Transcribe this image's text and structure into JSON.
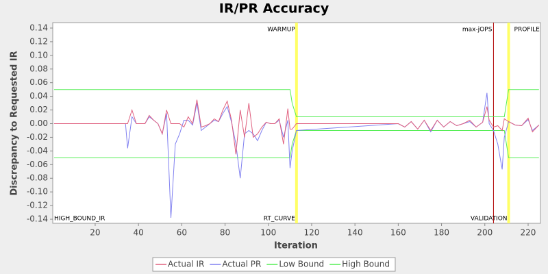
{
  "chart_data": {
    "type": "line",
    "title": "IR/PR Accuracy",
    "x_label": "Iteration",
    "y_label": "Discrepancy to Requested IR",
    "x": [
      1,
      34,
      35,
      37,
      39,
      41,
      43,
      45,
      47,
      49,
      51,
      53,
      55,
      57,
      59,
      61,
      63,
      65,
      67,
      69,
      71,
      73,
      75,
      77,
      79,
      81,
      83,
      85,
      87,
      89,
      91,
      93,
      95,
      97,
      99,
      101,
      103,
      105,
      107,
      109,
      110,
      111,
      113,
      160,
      163,
      166,
      169,
      172,
      175,
      178,
      181,
      184,
      187,
      190,
      193,
      196,
      199,
      201,
      202,
      204,
      206,
      208,
      209,
      211,
      214,
      217,
      220,
      222,
      225
    ],
    "series": [
      {
        "name": "Actual IR",
        "color": "#e0607f",
        "values": [
          0,
          0,
          0,
          0.02,
          0,
          0,
          0,
          0.012,
          0.005,
          0,
          -0.015,
          0.02,
          0,
          0,
          0,
          -0.005,
          0.01,
          0,
          0.035,
          -0.005,
          -0.003,
          0,
          0.007,
          0.003,
          0.02,
          0.033,
          0.005,
          -0.045,
          0.02,
          -0.02,
          0.03,
          -0.02,
          -0.015,
          -0.005,
          0.002,
          0,
          0,
          0.007,
          -0.03,
          0.022,
          -0.008,
          -0.008,
          0,
          0,
          -0.005,
          0.003,
          -0.008,
          0.005,
          -0.01,
          0.005,
          -0.005,
          0.003,
          -0.003,
          0,
          0.005,
          -0.005,
          0.002,
          0.025,
          0.005,
          -0.005,
          -0.003,
          -0.01,
          0.007,
          0.003,
          -0.002,
          -0.003,
          0.008,
          -0.012,
          -0.002
        ]
      },
      {
        "name": "Actual PR",
        "color": "#8080f0",
        "values": [
          0,
          0,
          -0.036,
          0.01,
          0,
          0,
          0,
          0.01,
          0.005,
          0,
          -0.015,
          0.015,
          -0.138,
          -0.03,
          -0.015,
          0.005,
          0.005,
          -0.002,
          0.03,
          -0.01,
          -0.005,
          0,
          0.005,
          0.003,
          0.015,
          0.025,
          0.002,
          -0.03,
          -0.08,
          -0.015,
          -0.01,
          -0.015,
          -0.025,
          -0.01,
          0.002,
          0,
          0,
          0.005,
          -0.02,
          0.005,
          -0.065,
          -0.04,
          -0.01,
          0,
          -0.005,
          0.003,
          -0.008,
          0.005,
          -0.012,
          0.005,
          -0.005,
          0.003,
          -0.003,
          0,
          0.003,
          -0.005,
          0.002,
          0.045,
          0,
          -0.01,
          -0.03,
          -0.067,
          -0.02,
          0.003,
          -0.002,
          -0.003,
          0.006,
          -0.01,
          -0.002
        ]
      },
      {
        "name": "Low Bound",
        "color": "#55ee55",
        "values": [
          -0.05,
          -0.05,
          -0.05,
          -0.05,
          -0.05,
          -0.05,
          -0.05,
          -0.05,
          -0.05,
          -0.05,
          -0.05,
          -0.05,
          -0.05,
          -0.05,
          -0.05,
          -0.05,
          -0.05,
          -0.05,
          -0.05,
          -0.05,
          -0.05,
          -0.05,
          -0.05,
          -0.05,
          -0.05,
          -0.05,
          -0.05,
          -0.05,
          -0.05,
          -0.05,
          -0.05,
          -0.05,
          -0.05,
          -0.05,
          -0.05,
          -0.05,
          -0.05,
          -0.05,
          -0.05,
          -0.05,
          -0.05,
          -0.03,
          -0.01,
          -0.01,
          -0.01,
          -0.01,
          -0.01,
          -0.01,
          -0.01,
          -0.01,
          -0.01,
          -0.01,
          -0.01,
          -0.01,
          -0.01,
          -0.01,
          -0.01,
          -0.01,
          -0.01,
          -0.01,
          -0.01,
          -0.01,
          -0.01,
          -0.05,
          -0.05,
          -0.05,
          -0.05,
          -0.05,
          -0.05
        ]
      },
      {
        "name": "High Bound",
        "color": "#55ee55",
        "values": [
          0.05,
          0.05,
          0.05,
          0.05,
          0.05,
          0.05,
          0.05,
          0.05,
          0.05,
          0.05,
          0.05,
          0.05,
          0.05,
          0.05,
          0.05,
          0.05,
          0.05,
          0.05,
          0.05,
          0.05,
          0.05,
          0.05,
          0.05,
          0.05,
          0.05,
          0.05,
          0.05,
          0.05,
          0.05,
          0.05,
          0.05,
          0.05,
          0.05,
          0.05,
          0.05,
          0.05,
          0.05,
          0.05,
          0.05,
          0.05,
          0.05,
          0.03,
          0.01,
          0.01,
          0.01,
          0.01,
          0.01,
          0.01,
          0.01,
          0.01,
          0.01,
          0.01,
          0.01,
          0.01,
          0.01,
          0.01,
          0.01,
          0.01,
          0.01,
          0.01,
          0.01,
          0.01,
          0.01,
          0.05,
          0.05,
          0.05,
          0.05,
          0.05,
          0.05
        ]
      }
    ],
    "markers": [
      {
        "x": 113,
        "color": "#ffff66",
        "top_label": "WARMUP",
        "bottom_label": "RT_CURVE"
      },
      {
        "x": 204,
        "color": "#b00000",
        "top_label": "max-jOPS"
      },
      {
        "x": 211,
        "color": "#ffff66",
        "top_label": "PROFILE",
        "bottom_label": "VALIDATION"
      }
    ],
    "corner_label": "HIGH_BOUND_IR",
    "xlim": [
      0.4,
      225.7
    ],
    "ylim": [
      -0.146,
      0.148
    ],
    "xticks": [
      20,
      40,
      60,
      80,
      100,
      120,
      140,
      160,
      180,
      200,
      220
    ],
    "yticks": [
      -0.14,
      -0.12,
      {
        "value": -0.1,
        "label": "-0.10"
      },
      -0.08,
      -0.06,
      -0.04,
      -0.02,
      {
        "value": 0,
        "label": "0.00"
      },
      0.02,
      0.04,
      0.06,
      0.08,
      {
        "value": 0.1,
        "label": "0.10"
      },
      0.12,
      0.14
    ],
    "legend": "bottom"
  }
}
